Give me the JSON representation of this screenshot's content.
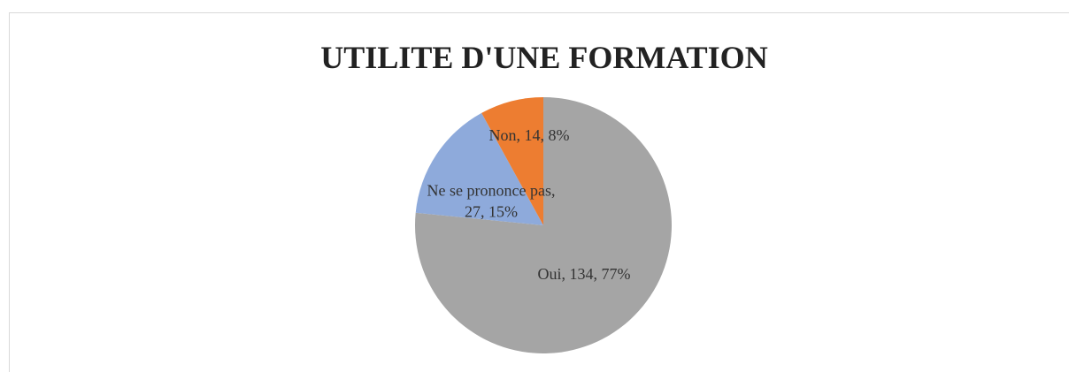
{
  "chart_data": {
    "type": "pie",
    "title": "UTILITE D'UNE FORMATION",
    "categories": [
      "Oui",
      "Ne se prononce pas",
      "Non"
    ],
    "values": [
      134,
      27,
      14
    ],
    "value_labels": [
      "Oui, 134, 77%",
      "Ne se prononce pas, 27, 15%",
      "Non, 14, 8%"
    ],
    "colors": [
      "#a5a5a5",
      "#8eaadb",
      "#ed7d31"
    ]
  }
}
